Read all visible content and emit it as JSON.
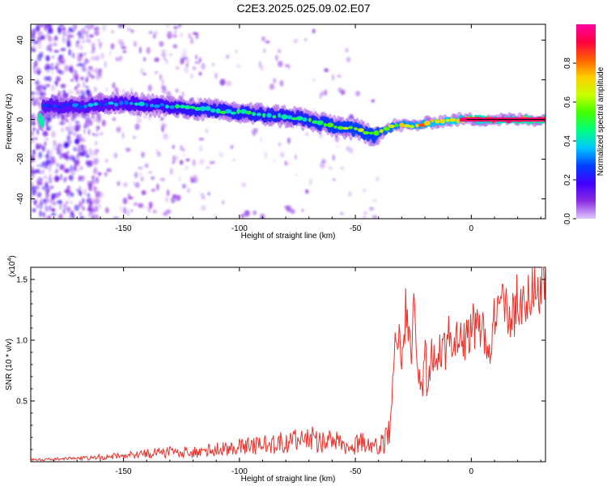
{
  "title": "C2E3.2025.025.09.02.E07",
  "colors": {
    "snr_line": "#e8322c",
    "axis": "#000000",
    "colormap": [
      "#e0c8ff",
      "#8a2be2",
      "#4000ff",
      "#0040ff",
      "#00c8ff",
      "#00ff80",
      "#40ff00",
      "#c8ff00",
      "#ffd000",
      "#ff6000",
      "#ff0040",
      "#ff00a0"
    ]
  },
  "chart_data": [
    {
      "type": "heatmap",
      "xlabel": "Height of straight line (km)",
      "ylabel": "Frequency (Hz)",
      "xlim": [
        -190,
        32
      ],
      "ylim": [
        -50,
        48
      ],
      "xticks": [
        -150,
        -100,
        -50,
        0
      ],
      "xtick_labels": [
        "-150",
        "-100",
        "-50",
        "0"
      ],
      "yticks": [
        -40,
        -20,
        0,
        20,
        40
      ],
      "ytick_labels": [
        "-40",
        "-20",
        "0",
        "20",
        "40"
      ],
      "colorbar": {
        "label": "Normalized spectral amplitude",
        "range": [
          0,
          1
        ],
        "ticks": [
          0.0,
          0.2,
          0.4,
          0.6,
          0.8
        ],
        "tick_labels": [
          "0.0",
          "0.2",
          "0.4",
          "0.6",
          "0.8"
        ]
      },
      "ridge": {
        "x": [
          -185,
          -175,
          -165,
          -155,
          -145,
          -135,
          -125,
          -115,
          -105,
          -95,
          -85,
          -75,
          -65,
          -55,
          -47,
          -42,
          -38,
          -33,
          -25,
          -15,
          -5,
          5,
          15,
          25,
          32
        ],
        "y": [
          7,
          7,
          7,
          8,
          8,
          7,
          6,
          5,
          4,
          3,
          2,
          1,
          -2,
          -4,
          -6,
          -8,
          -6,
          -3,
          -3,
          -1,
          0,
          0,
          0,
          0,
          0
        ],
        "amplitude": [
          0.25,
          0.3,
          0.35,
          0.35,
          0.4,
          0.4,
          0.45,
          0.5,
          0.5,
          0.5,
          0.5,
          0.5,
          0.55,
          0.6,
          0.6,
          0.6,
          0.65,
          0.7,
          0.75,
          0.8,
          0.85,
          0.9,
          0.92,
          0.95,
          0.95
        ]
      }
    },
    {
      "type": "line",
      "xlabel": "Height of straight line (km)",
      "ylabel": "SNR (10 * v/v)",
      "scale_label": "(x10",
      "scale_exponent": "4",
      "xlim": [
        -190,
        32
      ],
      "ylim": [
        0,
        1.6
      ],
      "xticks": [
        -150,
        -100,
        -50,
        0
      ],
      "xtick_labels": [
        "-150",
        "-100",
        "-50",
        "0"
      ],
      "yticks": [
        0.5,
        1.0,
        1.5
      ],
      "ytick_labels": [
        "0.5",
        "1.0",
        "1.5"
      ],
      "series": [
        {
          "x": [
            -190,
            -175,
            -160,
            -150,
            -140,
            -130,
            -120,
            -115,
            -110,
            -100,
            -90,
            -80,
            -70,
            -60,
            -50,
            -45,
            -40,
            -35,
            -33,
            -31,
            -30,
            -28,
            -26,
            -25,
            -24,
            -23,
            -21,
            -20,
            -19,
            -17,
            -15,
            -13,
            -11,
            -10,
            -9,
            -7,
            -5,
            -3,
            0,
            3,
            5,
            8,
            10,
            13,
            15,
            18,
            20,
            23,
            25,
            28,
            30,
            32
          ],
          "y": [
            0.02,
            0.03,
            0.05,
            0.07,
            0.09,
            0.11,
            0.1,
            0.12,
            0.14,
            0.16,
            0.18,
            0.21,
            0.25,
            0.22,
            0.18,
            0.22,
            0.15,
            0.3,
            0.9,
            1.0,
            0.75,
            1.3,
            0.8,
            1.2,
            1.15,
            0.7,
            0.55,
            1.1,
            0.5,
            0.9,
            0.75,
            0.95,
            0.9,
            1.05,
            0.95,
            1.0,
            1.05,
            1.0,
            1.1,
            1.15,
            1.05,
            0.8,
            1.2,
            1.25,
            1.3,
            1.2,
            1.35,
            1.3,
            1.45,
            1.4,
            1.5,
            1.6
          ]
        }
      ]
    }
  ]
}
